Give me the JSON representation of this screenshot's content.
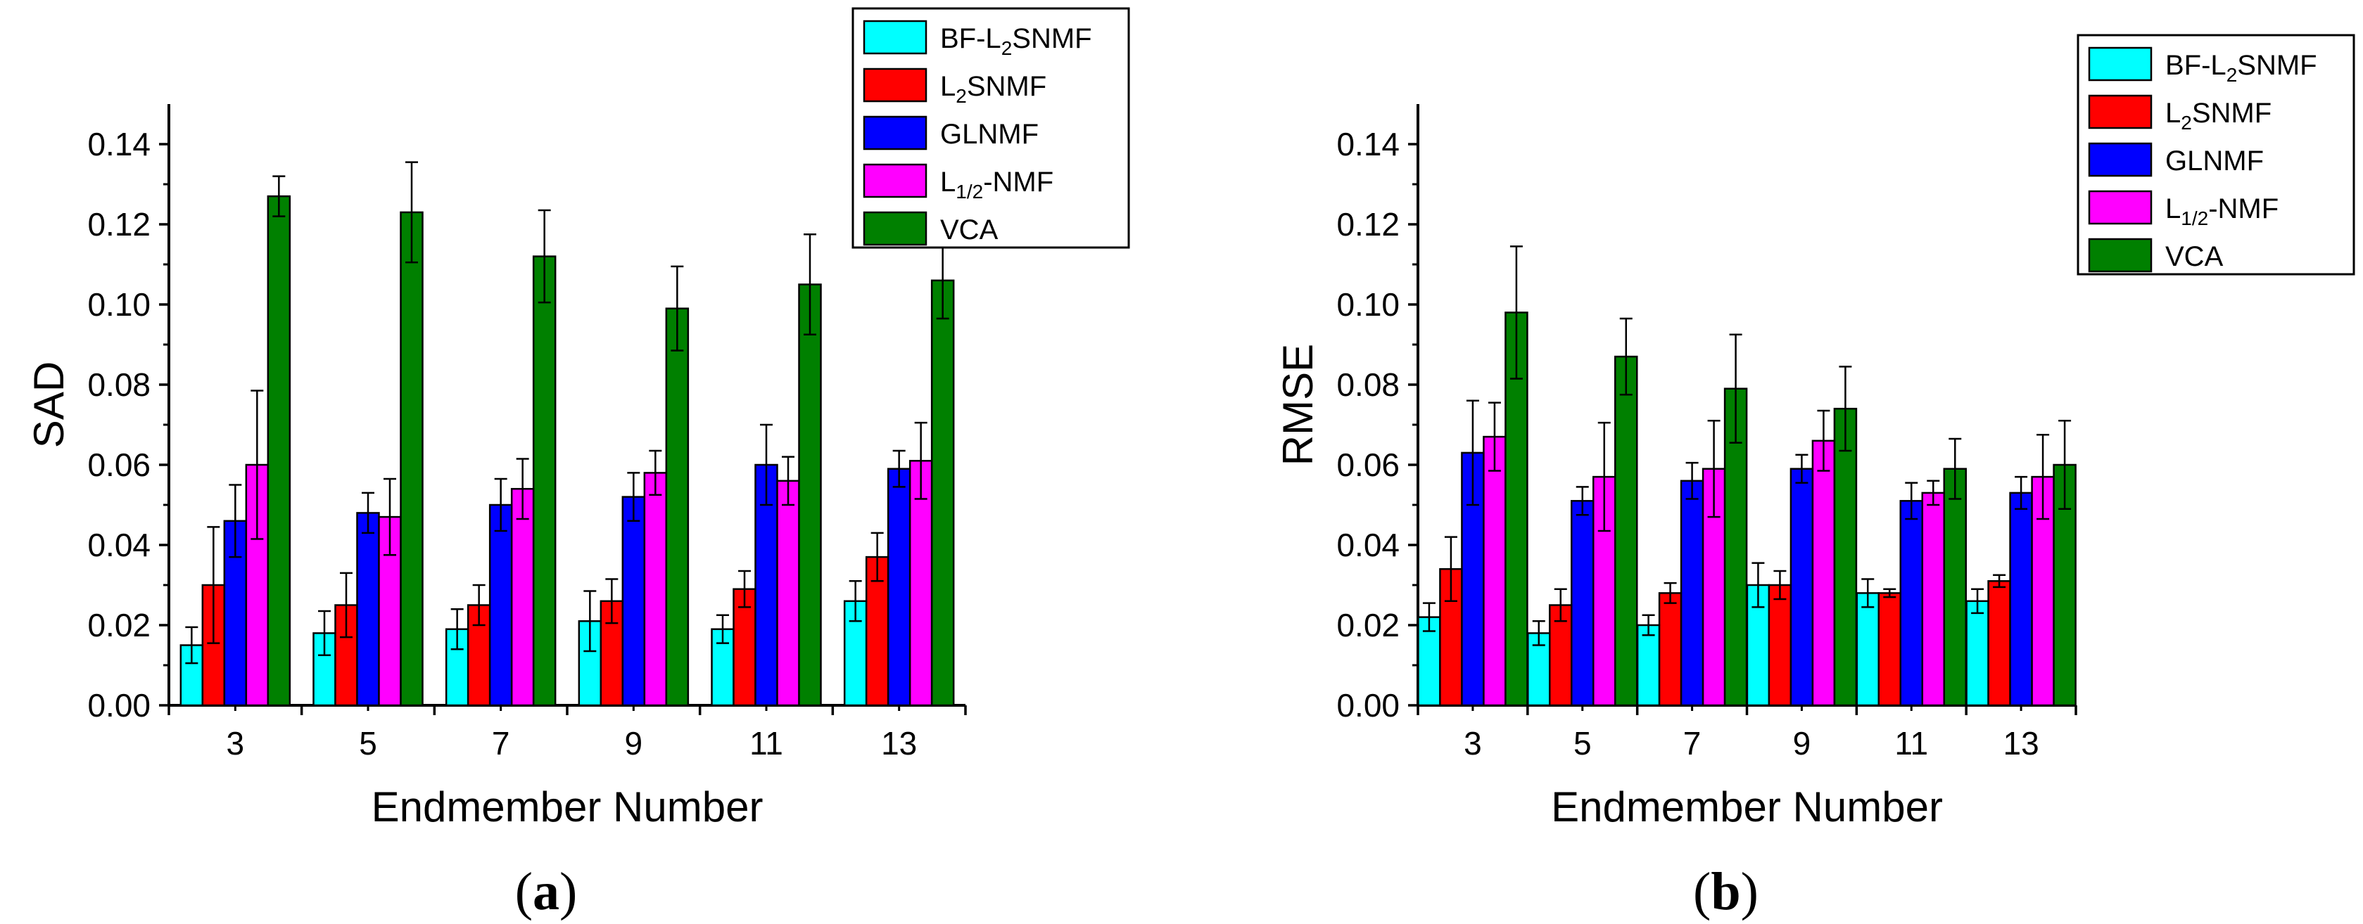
{
  "colors": {
    "BF-L2SNMF": "#00FFFF",
    "L2SNMF": "#FF0000",
    "GLNMF": "#0000FF",
    "L1/2-NMF": "#FF00FF",
    "VCA": "#008000"
  },
  "chart_data": [
    {
      "id": "a",
      "type": "bar",
      "caption": {
        "open": "(",
        "letter": "a",
        "close": ")"
      },
      "xlabel": "Endmember Number",
      "ylabel": "SAD",
      "categories": [
        "3",
        "5",
        "7",
        "9",
        "11",
        "13"
      ],
      "ylim": [
        0,
        0.15
      ],
      "yticks": [
        "0.00",
        "0.02",
        "0.04",
        "0.06",
        "0.08",
        "0.10",
        "0.12",
        "0.14"
      ],
      "legend_position": "top-right",
      "series": [
        {
          "key": "BF-L2SNMF",
          "label": {
            "base": "BF-L",
            "sub": "2",
            "tail": "SNMF"
          },
          "values": [
            0.015,
            0.018,
            0.019,
            0.021,
            0.019,
            0.026
          ],
          "errors": [
            0.0045,
            0.0055,
            0.005,
            0.0075,
            0.0035,
            0.005
          ]
        },
        {
          "key": "L2SNMF",
          "label": {
            "base": "L",
            "sub": "2",
            "tail": "SNMF"
          },
          "values": [
            0.03,
            0.025,
            0.025,
            0.026,
            0.029,
            0.037
          ],
          "errors": [
            0.0145,
            0.008,
            0.005,
            0.0055,
            0.0045,
            0.006
          ]
        },
        {
          "key": "GLNMF",
          "label": {
            "base": "GLNMF",
            "sub": "",
            "tail": ""
          },
          "values": [
            0.046,
            0.048,
            0.05,
            0.052,
            0.06,
            0.059
          ],
          "errors": [
            0.009,
            0.005,
            0.0065,
            0.006,
            0.01,
            0.0045
          ]
        },
        {
          "key": "L1/2-NMF",
          "label": {
            "base": "L",
            "sub": "1/2",
            "tail": "-NMF"
          },
          "values": [
            0.06,
            0.047,
            0.054,
            0.058,
            0.056,
            0.061
          ],
          "errors": [
            0.0185,
            0.0095,
            0.0075,
            0.0055,
            0.006,
            0.0095
          ]
        },
        {
          "key": "VCA",
          "label": {
            "base": "VCA",
            "sub": "",
            "tail": ""
          },
          "values": [
            0.127,
            0.123,
            0.112,
            0.099,
            0.105,
            0.106
          ],
          "errors": [
            0.005,
            0.0125,
            0.0115,
            0.0105,
            0.0125,
            0.0095
          ]
        }
      ]
    },
    {
      "id": "b",
      "type": "bar",
      "caption": {
        "open": "(",
        "letter": "b",
        "close": ")"
      },
      "xlabel": "Endmember Number",
      "ylabel": "RMSE",
      "categories": [
        "3",
        "5",
        "7",
        "9",
        "11",
        "13"
      ],
      "ylim": [
        0,
        0.15
      ],
      "yticks": [
        "0.00",
        "0.02",
        "0.04",
        "0.06",
        "0.08",
        "0.10",
        "0.12",
        "0.14"
      ],
      "legend_position": "top-right",
      "series": [
        {
          "key": "BF-L2SNMF",
          "label": {
            "base": "BF-L",
            "sub": "2",
            "tail": "SNMF"
          },
          "values": [
            0.022,
            0.018,
            0.02,
            0.03,
            0.028,
            0.026
          ],
          "errors": [
            0.0035,
            0.003,
            0.0025,
            0.0055,
            0.0035,
            0.003
          ]
        },
        {
          "key": "L2SNMF",
          "label": {
            "base": "L",
            "sub": "2",
            "tail": "SNMF"
          },
          "values": [
            0.034,
            0.025,
            0.028,
            0.03,
            0.028,
            0.031
          ],
          "errors": [
            0.008,
            0.004,
            0.0025,
            0.0035,
            0.001,
            0.0015
          ]
        },
        {
          "key": "GLNMF",
          "label": {
            "base": "GLNMF",
            "sub": "",
            "tail": ""
          },
          "values": [
            0.063,
            0.051,
            0.056,
            0.059,
            0.051,
            0.053
          ],
          "errors": [
            0.013,
            0.0035,
            0.0045,
            0.0035,
            0.0045,
            0.004
          ]
        },
        {
          "key": "L1/2-NMF",
          "label": {
            "base": "L",
            "sub": "1/2",
            "tail": "-NMF"
          },
          "values": [
            0.067,
            0.057,
            0.059,
            0.066,
            0.053,
            0.057
          ],
          "errors": [
            0.0085,
            0.0135,
            0.012,
            0.0075,
            0.003,
            0.0105
          ]
        },
        {
          "key": "VCA",
          "label": {
            "base": "VCA",
            "sub": "",
            "tail": ""
          },
          "values": [
            0.098,
            0.087,
            0.079,
            0.074,
            0.059,
            0.06
          ],
          "errors": [
            0.0165,
            0.0095,
            0.0135,
            0.0105,
            0.0075,
            0.011
          ]
        }
      ]
    }
  ]
}
